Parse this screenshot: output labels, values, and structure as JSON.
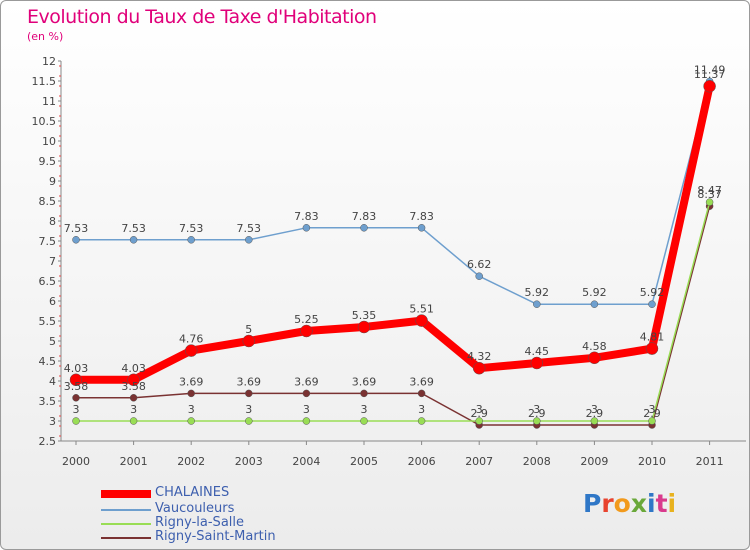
{
  "header": {
    "title": "Evolution du Taux de Taxe d'Habitation",
    "subtitle": "(en %)"
  },
  "chart_data": {
    "type": "line",
    "title": "Evolution du Taux de Taxe d'Habitation",
    "subtitle": "(en %)",
    "xlabel": "",
    "ylabel": "",
    "categories": [
      "2000",
      "2001",
      "2002",
      "2003",
      "2004",
      "2005",
      "2006",
      "2007",
      "2008",
      "2009",
      "2010",
      "2011"
    ],
    "ylim": [
      2.5,
      12
    ],
    "yticks": [
      "2.5",
      "3",
      "3.5",
      "4",
      "4.5",
      "5",
      "5.5",
      "6",
      "6.5",
      "7",
      "7.5",
      "8",
      "8.5",
      "9",
      "9.5",
      "10",
      "10.5",
      "11",
      "11.5",
      "12"
    ],
    "grid": false,
    "legend_position": "bottom-left",
    "series": [
      {
        "name": "CHALAINES",
        "color": "#ff0000",
        "values": [
          4.03,
          4.03,
          4.76,
          5,
          5.25,
          5.35,
          5.51,
          4.32,
          4.45,
          4.58,
          4.81,
          11.37
        ],
        "labels": [
          "4.03",
          "4.03",
          "4.76",
          "5",
          "5.25",
          "5.35",
          "5.51",
          "4.32",
          "4.45",
          "4.58",
          "4.81",
          "11.37"
        ]
      },
      {
        "name": "Vaucouleurs",
        "color": "#6e9fce",
        "values": [
          7.53,
          7.53,
          7.53,
          7.53,
          7.83,
          7.83,
          7.83,
          6.62,
          5.92,
          5.92,
          5.92,
          11.49
        ],
        "labels": [
          "7.53",
          "7.53",
          "7.53",
          "7.53",
          "7.83",
          "7.83",
          "7.83",
          "6.62",
          "5.92",
          "5.92",
          "5.92",
          "11.49"
        ]
      },
      {
        "name": "Rigny-la-Salle",
        "color": "#99dd55",
        "values": [
          3,
          3,
          3,
          3,
          3,
          3,
          3,
          3,
          3,
          3,
          3,
          8.47
        ],
        "labels": [
          "3",
          "3",
          "3",
          "3",
          "3",
          "3",
          "3",
          "3",
          "3",
          "3",
          "3",
          "8.47"
        ]
      },
      {
        "name": "Rigny-Saint-Martin",
        "color": "#7a3232",
        "values": [
          3.58,
          3.58,
          3.69,
          3.69,
          3.69,
          3.69,
          3.69,
          2.9,
          2.9,
          2.9,
          2.9,
          8.37
        ],
        "labels": [
          "3.58",
          "3.58",
          "3.69",
          "3.69",
          "3.69",
          "3.69",
          "3.69",
          "2.9",
          "2.9",
          "2.9",
          "2.9",
          "8.37"
        ]
      }
    ]
  },
  "legend": [
    {
      "label": "CHALAINES",
      "color": "#ff0000"
    },
    {
      "label": "Vaucouleurs",
      "color": "#6e9fce"
    },
    {
      "label": "Rigny-la-Salle",
      "color": "#99dd55"
    },
    {
      "label": "Rigny-Saint-Martin",
      "color": "#7a3232"
    }
  ],
  "logo": {
    "text": "Proxiti",
    "colors": [
      "#2f77c7",
      "#e8432e",
      "#f29a1c",
      "#6aa83a",
      "#2f77c7",
      "#d93a8d",
      "#e8b21e"
    ]
  }
}
